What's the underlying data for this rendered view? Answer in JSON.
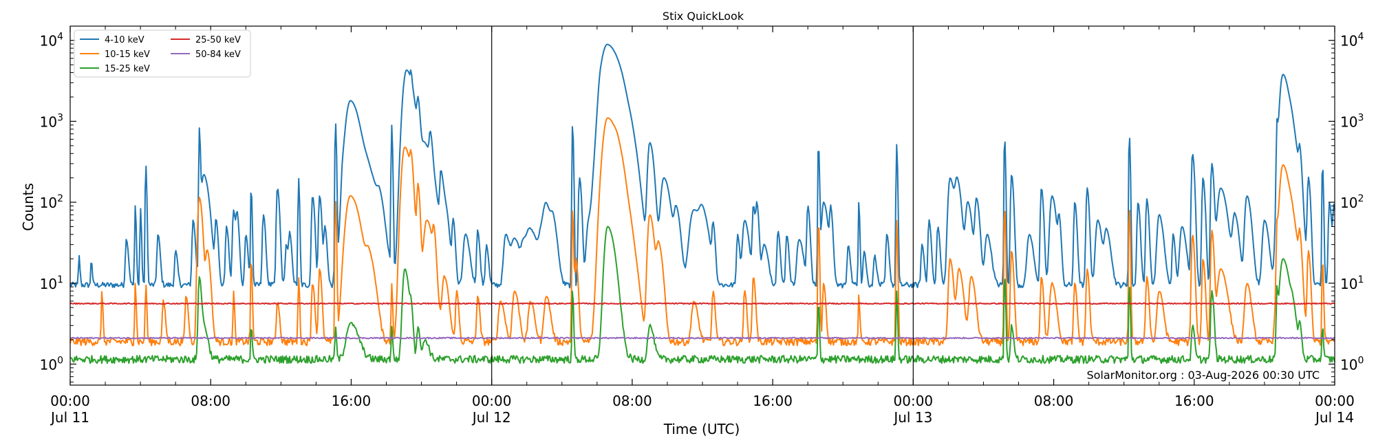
{
  "chart_data": {
    "type": "line",
    "title": "Stix QuickLook",
    "xlabel": "Time (UTC)",
    "ylabel": "Counts",
    "yscale": "log",
    "ylim": [
      0.55,
      15000
    ],
    "xlim_hours": [
      0,
      72
    ],
    "x_ticks": [
      {
        "hour": 0,
        "line1": "00:00",
        "line2": "Jul 11"
      },
      {
        "hour": 8,
        "line1": "08:00",
        "line2": ""
      },
      {
        "hour": 16,
        "line1": "16:00",
        "line2": ""
      },
      {
        "hour": 24,
        "line1": "00:00",
        "line2": "Jul 12"
      },
      {
        "hour": 32,
        "line1": "08:00",
        "line2": ""
      },
      {
        "hour": 40,
        "line1": "16:00",
        "line2": ""
      },
      {
        "hour": 48,
        "line1": "00:00",
        "line2": "Jul 13"
      },
      {
        "hour": 56,
        "line1": "08:00",
        "line2": ""
      },
      {
        "hour": 64,
        "line1": "16:00",
        "line2": ""
      },
      {
        "hour": 72,
        "line1": "00:00",
        "line2": "Jul 14"
      }
    ],
    "y_ticks": [
      {
        "value": 1,
        "base": "10",
        "exp": "0"
      },
      {
        "value": 10,
        "base": "10",
        "exp": "1"
      },
      {
        "value": 100,
        "base": "10",
        "exp": "2"
      },
      {
        "value": 1000,
        "base": "10",
        "exp": "3"
      },
      {
        "value": 10000,
        "base": "10",
        "exp": "4"
      }
    ],
    "day_separators_hours": [
      24,
      48
    ],
    "legend_position": "top-left",
    "annotation": "SolarMonitor.org : 03-Aug-2026 00:30 UTC",
    "series": [
      {
        "name": "4-10 keV",
        "color": "#1f77b4",
        "baseline": 9.5,
        "noise": 0.08,
        "peaks": [
          [
            0.5,
            22,
            0.05
          ],
          [
            1.2,
            20,
            0.05
          ],
          [
            3.2,
            35,
            0.1
          ],
          [
            3.7,
            90,
            0.05
          ],
          [
            4.0,
            85,
            0.05
          ],
          [
            4.3,
            300,
            0.05
          ],
          [
            5.0,
            40,
            0.1
          ],
          [
            6.0,
            25,
            0.1
          ],
          [
            7.0,
            60,
            0.1
          ],
          [
            7.35,
            800,
            0.05
          ],
          [
            7.6,
            220,
            0.25
          ],
          [
            8.3,
            60,
            0.1
          ],
          [
            8.9,
            50,
            0.1
          ],
          [
            9.3,
            80,
            0.1
          ],
          [
            9.5,
            70,
            0.1
          ],
          [
            10.0,
            40,
            0.1
          ],
          [
            10.3,
            150,
            0.05
          ],
          [
            11.0,
            70,
            0.1
          ],
          [
            11.8,
            150,
            0.1
          ],
          [
            12.3,
            30,
            0.1
          ],
          [
            12.5,
            40,
            0.1
          ],
          [
            13.0,
            200,
            0.05
          ],
          [
            13.8,
            120,
            0.1
          ],
          [
            14.2,
            120,
            0.1
          ],
          [
            14.5,
            50,
            0.1
          ],
          [
            15.1,
            1000,
            0.05
          ],
          [
            15.5,
            90,
            0.1
          ],
          [
            15.95,
            1800,
            0.45
          ],
          [
            17.0,
            200,
            0.5
          ],
          [
            17.6,
            60,
            0.2
          ],
          [
            18.3,
            900,
            0.05
          ],
          [
            19.15,
            4300,
            0.35
          ],
          [
            19.4,
            1000,
            0.05
          ],
          [
            19.8,
            1200,
            0.1
          ],
          [
            20.2,
            500,
            0.4
          ],
          [
            20.5,
            400,
            0.1
          ],
          [
            21.1,
            200,
            0.1
          ],
          [
            21.3,
            100,
            0.2
          ],
          [
            21.8,
            60,
            0.1
          ],
          [
            22.5,
            40,
            0.2
          ],
          [
            23.2,
            45,
            0.1
          ],
          [
            23.7,
            30,
            0.1
          ],
          [
            24.8,
            40,
            0.2
          ],
          [
            25.3,
            35,
            0.3
          ],
          [
            25.8,
            25,
            0.2
          ],
          [
            26.2,
            45,
            0.4
          ],
          [
            26.8,
            30,
            0.2
          ],
          [
            27.1,
            90,
            0.3
          ],
          [
            27.5,
            40,
            0.2
          ],
          [
            28.6,
            880,
            0.05
          ],
          [
            29.0,
            200,
            0.1
          ],
          [
            29.5,
            50,
            0.2
          ],
          [
            30.2,
            1000,
            0.2
          ],
          [
            30.6,
            8800,
            0.6
          ],
          [
            31.4,
            500,
            0.5
          ],
          [
            32.0,
            150,
            0.3
          ],
          [
            33.0,
            540,
            0.2
          ],
          [
            33.8,
            200,
            0.3
          ],
          [
            34.5,
            80,
            0.2
          ],
          [
            35.5,
            80,
            0.4
          ],
          [
            36.0,
            60,
            0.3
          ],
          [
            36.6,
            50,
            0.1
          ],
          [
            38.0,
            40,
            0.1
          ],
          [
            38.4,
            60,
            0.2
          ],
          [
            38.9,
            90,
            0.1
          ],
          [
            39.1,
            90,
            0.1
          ],
          [
            39.5,
            30,
            0.2
          ],
          [
            40.3,
            45,
            0.1
          ],
          [
            40.8,
            40,
            0.1
          ],
          [
            41.5,
            35,
            0.2
          ],
          [
            42.0,
            90,
            0.1
          ],
          [
            42.6,
            530,
            0.05
          ],
          [
            42.9,
            100,
            0.2
          ],
          [
            43.3,
            80,
            0.1
          ],
          [
            44.3,
            30,
            0.1
          ],
          [
            44.9,
            100,
            0.05
          ],
          [
            45.2,
            25,
            0.1
          ],
          [
            45.8,
            22,
            0.1
          ],
          [
            46.5,
            40,
            0.1
          ],
          [
            47.05,
            520,
            0.05
          ],
          [
            48.5,
            30,
            0.1
          ],
          [
            48.9,
            60,
            0.1
          ],
          [
            49.4,
            50,
            0.1
          ],
          [
            50.1,
            200,
            0.2
          ],
          [
            50.5,
            180,
            0.2
          ],
          [
            51.1,
            100,
            0.2
          ],
          [
            51.6,
            110,
            0.15
          ],
          [
            52.2,
            40,
            0.2
          ],
          [
            53.2,
            650,
            0.05
          ],
          [
            53.6,
            220,
            0.1
          ],
          [
            54.6,
            40,
            0.2
          ],
          [
            55.3,
            150,
            0.1
          ],
          [
            55.9,
            120,
            0.2
          ],
          [
            56.3,
            60,
            0.1
          ],
          [
            57.2,
            100,
            0.1
          ],
          [
            57.9,
            150,
            0.1
          ],
          [
            58.5,
            60,
            0.2
          ],
          [
            59.0,
            45,
            0.2
          ],
          [
            60.3,
            700,
            0.05
          ],
          [
            60.8,
            100,
            0.1
          ],
          [
            61.3,
            110,
            0.1
          ],
          [
            62.0,
            70,
            0.2
          ],
          [
            62.8,
            40,
            0.1
          ],
          [
            63.3,
            50,
            0.2
          ],
          [
            63.9,
            400,
            0.1
          ],
          [
            64.5,
            200,
            0.1
          ],
          [
            65.0,
            300,
            0.1
          ],
          [
            65.5,
            150,
            0.3
          ],
          [
            66.3,
            70,
            0.2
          ],
          [
            67.0,
            120,
            0.2
          ],
          [
            68.0,
            60,
            0.2
          ],
          [
            68.7,
            800,
            0.05
          ],
          [
            69.05,
            3800,
            0.3
          ],
          [
            69.6,
            500,
            0.3
          ],
          [
            70.0,
            300,
            0.1
          ],
          [
            70.5,
            200,
            0.1
          ],
          [
            71.3,
            300,
            0.05
          ],
          [
            71.7,
            100,
            0.1
          ],
          [
            71.95,
            90,
            0.1
          ]
        ]
      },
      {
        "name": "10-15 keV",
        "color": "#ff7f0e",
        "baseline": 1.9,
        "noise": 0.11,
        "peaks": [
          [
            1.8,
            8,
            0.05
          ],
          [
            3.7,
            10,
            0.05
          ],
          [
            4.3,
            10,
            0.05
          ],
          [
            5.3,
            6,
            0.1
          ],
          [
            6.6,
            7,
            0.1
          ],
          [
            7.35,
            115,
            0.15
          ],
          [
            7.8,
            25,
            0.15
          ],
          [
            9.3,
            8,
            0.05
          ],
          [
            10.3,
            20,
            0.05
          ],
          [
            11.8,
            6,
            0.1
          ],
          [
            13.0,
            12,
            0.05
          ],
          [
            13.8,
            10,
            0.1
          ],
          [
            14.2,
            15,
            0.1
          ],
          [
            15.1,
            110,
            0.05
          ],
          [
            15.95,
            120,
            0.45
          ],
          [
            17.0,
            20,
            0.3
          ],
          [
            18.3,
            10,
            0.05
          ],
          [
            19.05,
            480,
            0.3
          ],
          [
            19.4,
            200,
            0.1
          ],
          [
            19.8,
            150,
            0.1
          ],
          [
            20.3,
            60,
            0.3
          ],
          [
            20.7,
            30,
            0.1
          ],
          [
            21.3,
            12,
            0.2
          ],
          [
            22.0,
            8,
            0.1
          ],
          [
            23.2,
            7,
            0.1
          ],
          [
            24.5,
            6,
            0.2
          ],
          [
            25.3,
            8,
            0.2
          ],
          [
            26.2,
            6,
            0.2
          ],
          [
            27.1,
            7,
            0.2
          ],
          [
            28.6,
            80,
            0.05
          ],
          [
            28.8,
            20,
            0.1
          ],
          [
            30.6,
            1100,
            0.45
          ],
          [
            31.2,
            200,
            0.4
          ],
          [
            32.0,
            15,
            0.3
          ],
          [
            33.0,
            70,
            0.2
          ],
          [
            33.5,
            30,
            0.2
          ],
          [
            35.5,
            6,
            0.2
          ],
          [
            36.6,
            8,
            0.1
          ],
          [
            38.4,
            8,
            0.1
          ],
          [
            38.9,
            12,
            0.1
          ],
          [
            42.6,
            60,
            0.05
          ],
          [
            42.9,
            10,
            0.1
          ],
          [
            44.9,
            7,
            0.05
          ],
          [
            47.05,
            60,
            0.05
          ],
          [
            50.1,
            20,
            0.15
          ],
          [
            50.6,
            15,
            0.2
          ],
          [
            51.3,
            12,
            0.2
          ],
          [
            53.2,
            90,
            0.05
          ],
          [
            53.6,
            25,
            0.1
          ],
          [
            55.3,
            12,
            0.1
          ],
          [
            55.9,
            10,
            0.2
          ],
          [
            57.2,
            10,
            0.1
          ],
          [
            57.9,
            15,
            0.1
          ],
          [
            60.3,
            90,
            0.05
          ],
          [
            61.3,
            12,
            0.1
          ],
          [
            62.0,
            8,
            0.2
          ],
          [
            63.9,
            40,
            0.1
          ],
          [
            64.5,
            20,
            0.1
          ],
          [
            65.0,
            45,
            0.1
          ],
          [
            65.5,
            15,
            0.3
          ],
          [
            67.0,
            10,
            0.2
          ],
          [
            68.7,
            40,
            0.05
          ],
          [
            69.05,
            290,
            0.3
          ],
          [
            69.6,
            40,
            0.3
          ],
          [
            70.0,
            30,
            0.1
          ],
          [
            70.5,
            25,
            0.1
          ],
          [
            71.3,
            20,
            0.05
          ]
        ]
      },
      {
        "name": "15-25 keV",
        "color": "#2ca02c",
        "baseline": 1.15,
        "noise": 0.11,
        "peaks": [
          [
            7.35,
            12,
            0.1
          ],
          [
            7.6,
            3,
            0.2
          ],
          [
            10.3,
            3,
            0.05
          ],
          [
            15.1,
            3,
            0.05
          ],
          [
            15.95,
            3.2,
            0.4
          ],
          [
            18.3,
            3,
            0.05
          ],
          [
            19.05,
            15,
            0.2
          ],
          [
            19.4,
            4,
            0.1
          ],
          [
            19.8,
            3,
            0.1
          ],
          [
            20.2,
            2,
            0.2
          ],
          [
            28.6,
            8,
            0.05
          ],
          [
            30.6,
            50,
            0.3
          ],
          [
            31.0,
            5,
            0.3
          ],
          [
            33.0,
            3,
            0.2
          ],
          [
            42.6,
            6,
            0.05
          ],
          [
            47.05,
            8,
            0.05
          ],
          [
            53.2,
            13,
            0.05
          ],
          [
            53.6,
            3,
            0.1
          ],
          [
            60.3,
            10,
            0.05
          ],
          [
            63.9,
            3,
            0.1
          ],
          [
            65.0,
            8,
            0.1
          ],
          [
            68.7,
            8,
            0.05
          ],
          [
            69.05,
            20,
            0.3
          ],
          [
            69.6,
            4,
            0.2
          ],
          [
            70.0,
            3,
            0.1
          ],
          [
            71.3,
            3,
            0.05
          ]
        ]
      },
      {
        "name": "25-50 keV",
        "color": "#d62728",
        "baseline": 5.6,
        "noise": 0.015,
        "peaks": []
      },
      {
        "name": "50-84 keV",
        "color": "#9467bd",
        "baseline": 2.1,
        "noise": 0.018,
        "peaks": []
      }
    ]
  }
}
